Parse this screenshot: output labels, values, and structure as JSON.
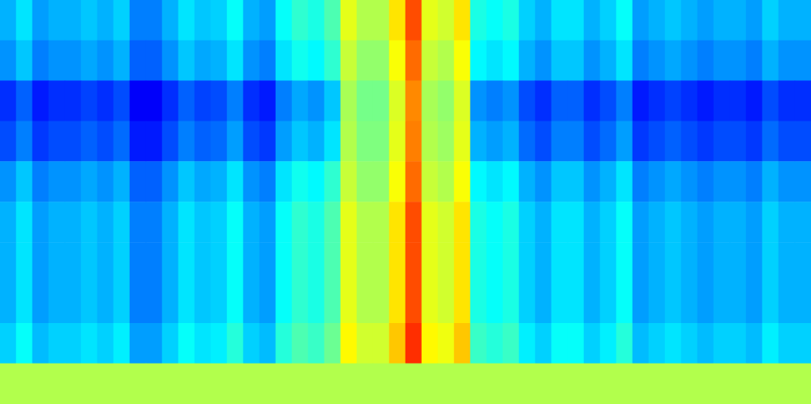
{
  "chart_data": {
    "type": "heatmap",
    "color": "jet",
    "tick_labels": false,
    "color_range": [
      0,
      1
    ],
    "cells": [
      [
        0.3,
        0.35,
        0.28,
        0.3,
        0.3,
        0.32,
        0.3,
        0.33,
        0.25,
        0.25,
        0.3,
        0.35,
        0.32,
        0.33,
        0.38,
        0.3,
        0.28,
        0.38,
        0.42,
        0.4,
        0.45,
        0.6,
        0.55,
        0.55,
        0.65,
        0.8,
        0.6,
        0.58,
        0.65,
        0.4,
        0.38,
        0.4,
        0.33,
        0.3,
        0.35,
        0.35,
        0.3,
        0.33,
        0.38,
        0.28,
        0.3,
        0.32,
        0.3,
        0.28,
        0.3,
        0.3,
        0.28,
        0.33,
        0.3,
        0.3
      ],
      [
        0.27,
        0.32,
        0.25,
        0.27,
        0.27,
        0.29,
        0.27,
        0.3,
        0.22,
        0.22,
        0.27,
        0.32,
        0.29,
        0.3,
        0.35,
        0.27,
        0.25,
        0.35,
        0.39,
        0.37,
        0.42,
        0.57,
        0.52,
        0.52,
        0.62,
        0.77,
        0.57,
        0.55,
        0.62,
        0.37,
        0.35,
        0.37,
        0.3,
        0.27,
        0.32,
        0.32,
        0.27,
        0.3,
        0.35,
        0.25,
        0.27,
        0.29,
        0.27,
        0.25,
        0.27,
        0.27,
        0.25,
        0.3,
        0.27,
        0.27
      ],
      [
        0.17,
        0.22,
        0.15,
        0.17,
        0.17,
        0.19,
        0.17,
        0.2,
        0.12,
        0.12,
        0.17,
        0.22,
        0.19,
        0.2,
        0.25,
        0.17,
        0.15,
        0.25,
        0.29,
        0.27,
        0.32,
        0.54,
        0.49,
        0.49,
        0.59,
        0.74,
        0.54,
        0.52,
        0.59,
        0.27,
        0.25,
        0.27,
        0.2,
        0.17,
        0.22,
        0.22,
        0.17,
        0.2,
        0.25,
        0.15,
        0.17,
        0.19,
        0.17,
        0.15,
        0.17,
        0.17,
        0.15,
        0.2,
        0.17,
        0.17
      ],
      [
        0.2,
        0.25,
        0.18,
        0.2,
        0.2,
        0.22,
        0.2,
        0.23,
        0.15,
        0.15,
        0.2,
        0.25,
        0.22,
        0.23,
        0.28,
        0.2,
        0.18,
        0.28,
        0.32,
        0.3,
        0.35,
        0.55,
        0.5,
        0.5,
        0.6,
        0.75,
        0.55,
        0.53,
        0.6,
        0.3,
        0.28,
        0.3,
        0.23,
        0.2,
        0.25,
        0.25,
        0.2,
        0.23,
        0.28,
        0.18,
        0.2,
        0.22,
        0.2,
        0.18,
        0.2,
        0.2,
        0.18,
        0.23,
        0.2,
        0.2
      ],
      [
        0.27,
        0.32,
        0.25,
        0.27,
        0.27,
        0.29,
        0.27,
        0.3,
        0.22,
        0.22,
        0.27,
        0.32,
        0.29,
        0.3,
        0.35,
        0.27,
        0.25,
        0.35,
        0.39,
        0.37,
        0.42,
        0.57,
        0.52,
        0.52,
        0.62,
        0.77,
        0.57,
        0.55,
        0.62,
        0.37,
        0.35,
        0.37,
        0.3,
        0.27,
        0.32,
        0.32,
        0.27,
        0.3,
        0.35,
        0.25,
        0.27,
        0.29,
        0.27,
        0.25,
        0.27,
        0.27,
        0.25,
        0.3,
        0.27,
        0.27
      ],
      [
        0.3,
        0.35,
        0.28,
        0.3,
        0.3,
        0.32,
        0.3,
        0.33,
        0.25,
        0.25,
        0.3,
        0.35,
        0.32,
        0.33,
        0.38,
        0.3,
        0.28,
        0.38,
        0.42,
        0.4,
        0.45,
        0.6,
        0.55,
        0.55,
        0.65,
        0.8,
        0.6,
        0.58,
        0.65,
        0.4,
        0.38,
        0.4,
        0.33,
        0.3,
        0.35,
        0.35,
        0.3,
        0.33,
        0.38,
        0.28,
        0.3,
        0.32,
        0.3,
        0.28,
        0.3,
        0.3,
        0.28,
        0.33,
        0.3,
        0.3
      ],
      [
        0.3,
        0.35,
        0.28,
        0.3,
        0.3,
        0.32,
        0.3,
        0.33,
        0.25,
        0.25,
        0.3,
        0.35,
        0.32,
        0.33,
        0.38,
        0.3,
        0.28,
        0.38,
        0.42,
        0.4,
        0.45,
        0.6,
        0.55,
        0.55,
        0.65,
        0.8,
        0.6,
        0.58,
        0.65,
        0.4,
        0.38,
        0.4,
        0.33,
        0.3,
        0.35,
        0.35,
        0.3,
        0.33,
        0.38,
        0.28,
        0.3,
        0.32,
        0.3,
        0.28,
        0.3,
        0.3,
        0.28,
        0.33,
        0.3,
        0.3
      ],
      [
        0.3,
        0.35,
        0.28,
        0.3,
        0.3,
        0.32,
        0.3,
        0.33,
        0.25,
        0.25,
        0.3,
        0.35,
        0.32,
        0.33,
        0.38,
        0.3,
        0.28,
        0.38,
        0.42,
        0.4,
        0.45,
        0.6,
        0.55,
        0.55,
        0.65,
        0.8,
        0.6,
        0.58,
        0.65,
        0.4,
        0.38,
        0.4,
        0.33,
        0.3,
        0.35,
        0.35,
        0.3,
        0.33,
        0.38,
        0.28,
        0.3,
        0.32,
        0.3,
        0.28,
        0.3,
        0.3,
        0.28,
        0.33,
        0.3,
        0.3
      ],
      [
        0.33,
        0.38,
        0.31,
        0.33,
        0.33,
        0.35,
        0.33,
        0.36,
        0.28,
        0.28,
        0.33,
        0.38,
        0.35,
        0.36,
        0.41,
        0.33,
        0.31,
        0.41,
        0.45,
        0.43,
        0.48,
        0.63,
        0.58,
        0.58,
        0.68,
        0.83,
        0.63,
        0.61,
        0.68,
        0.43,
        0.41,
        0.43,
        0.36,
        0.33,
        0.38,
        0.38,
        0.33,
        0.36,
        0.41,
        0.31,
        0.33,
        0.35,
        0.33,
        0.31,
        0.33,
        0.33,
        0.31,
        0.36,
        0.33,
        0.33
      ],
      [
        0.55,
        0.55,
        0.55,
        0.55,
        0.55,
        0.55,
        0.55,
        0.55,
        0.55,
        0.55,
        0.55,
        0.55,
        0.55,
        0.55,
        0.55,
        0.55,
        0.55,
        0.55,
        0.55,
        0.55,
        0.55,
        0.55,
        0.55,
        0.55,
        0.55,
        0.55,
        0.55,
        0.55,
        0.55,
        0.55,
        0.55,
        0.55,
        0.55,
        0.55,
        0.55,
        0.55,
        0.55,
        0.55,
        0.55,
        0.55,
        0.55,
        0.55,
        0.55,
        0.55,
        0.55,
        0.55,
        0.55,
        0.55,
        0.55,
        0.55
      ]
    ]
  }
}
